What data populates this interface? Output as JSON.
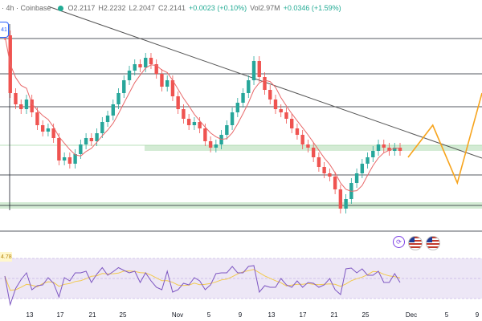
{
  "header": {
    "symbol_interval": "· 4h · Coinbase",
    "open": "O2.2117",
    "high": "H2.2232",
    "low": "L2.2047",
    "close": "C2.2141",
    "change": "+0.0023 (+0.10%)",
    "volume": "Vol2.97M",
    "change2": "+0.0346 (+1.59%)",
    "live_dot_color": "#22ab94"
  },
  "price_tag": "41",
  "rsi_tag": "4.78",
  "indicator_icons": [
    "refresh-icon",
    "us-flag-icon",
    "us-flag-icon"
  ],
  "x_axis": {
    "labels": [
      "13",
      "17",
      "21",
      "25",
      "Nov",
      "5",
      "9",
      "13",
      "17",
      "21",
      "25",
      "Dec",
      "5",
      "9"
    ]
  },
  "colors": {
    "up": "#26a69a",
    "down": "#ef5350",
    "ma": "#e8696a",
    "trendline": "#555555",
    "projection": "#f7a41d",
    "support_zone": "#c8e6c9",
    "rsi_line": "#7e57c2",
    "rsi_signal": "#f2c94c",
    "rsi_band": "#ede7f6"
  },
  "chart_data": {
    "type": "candlestick",
    "interval": "4h",
    "exchange": "Coinbase",
    "last": {
      "open": 2.2117,
      "high": 2.2232,
      "low": 2.2047,
      "close": 2.2141
    },
    "x_labels": [
      "13",
      "17",
      "21",
      "25",
      "Nov",
      "5",
      "9",
      "13",
      "17",
      "21",
      "25",
      "Dec",
      "5",
      "9"
    ],
    "series": [
      {
        "values": [
          0.98,
          0.62,
          0.55,
          0.52,
          0.58,
          0.5,
          0.42,
          0.38,
          0.4,
          0.34,
          0.2,
          0.22,
          0.18,
          0.24,
          0.3,
          0.34,
          0.32,
          0.37,
          0.44,
          0.48,
          0.55,
          0.62,
          0.7,
          0.76,
          0.8,
          0.78,
          0.84,
          0.8,
          0.74,
          0.66,
          0.7,
          0.6,
          0.52,
          0.46,
          0.42,
          0.44,
          0.4,
          0.32,
          0.28,
          0.3,
          0.36,
          0.42,
          0.5,
          0.56,
          0.62,
          0.7,
          0.82,
          0.72,
          0.64,
          0.58,
          0.52,
          0.5,
          0.46,
          0.4,
          0.36,
          0.3,
          0.28,
          0.22,
          0.16,
          0.12,
          0.1,
          0.02,
          -0.1,
          -0.04,
          0.06,
          0.12,
          0.18,
          0.22,
          0.26,
          0.3,
          0.28,
          0.26,
          0.28,
          0.26
        ]
      }
    ],
    "projection": [
      0.22,
      0.42,
      0.06,
      0.62
    ]
  }
}
